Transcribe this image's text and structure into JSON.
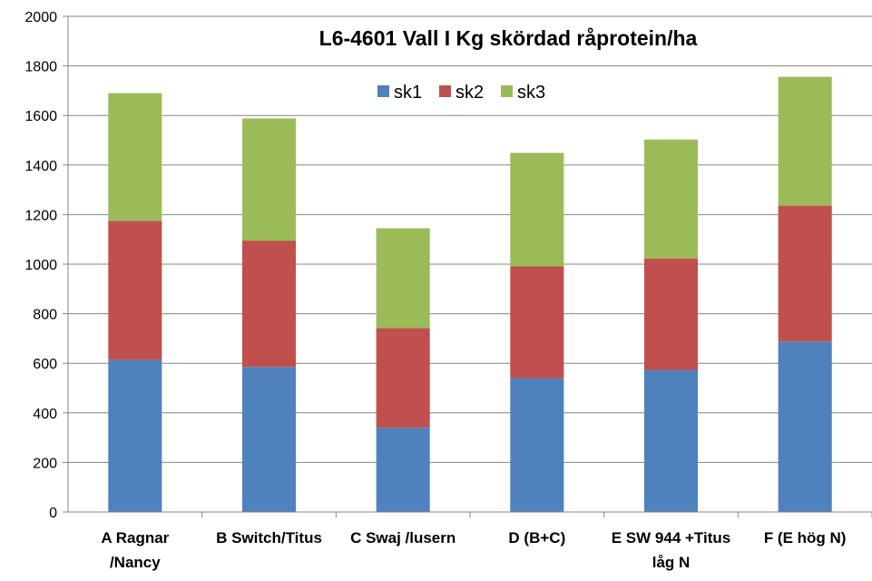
{
  "chart_data": {
    "type": "bar",
    "stacked": true,
    "title": "L6-4601 Vall I Kg skördad råprotein/ha",
    "categories": [
      [
        "A   Ragnar",
        "/Nancy"
      ],
      [
        "B Switch/Titus"
      ],
      [
        "C Swaj /lusern"
      ],
      [
        "D (B+C)"
      ],
      [
        "E SW 944 +Titus",
        "låg N"
      ],
      [
        "F (E hög N)"
      ]
    ],
    "series": [
      {
        "name": "sk1",
        "color": "#4F81BD",
        "values": [
          615,
          585,
          340,
          540,
          573,
          688
        ]
      },
      {
        "name": "sk2",
        "color": "#C0504D",
        "values": [
          560,
          510,
          402,
          452,
          450,
          548
        ]
      },
      {
        "name": "sk3",
        "color": "#9BBB59",
        "values": [
          515,
          493,
          403,
          457,
          480,
          520
        ]
      }
    ],
    "ylim": [
      0,
      2000
    ],
    "yticks": [
      "0",
      "200",
      "400",
      "600",
      "800",
      "1000",
      "1200",
      "1400",
      "1600",
      "1800",
      "2000"
    ],
    "grid": true,
    "legend_position": "top-center"
  }
}
